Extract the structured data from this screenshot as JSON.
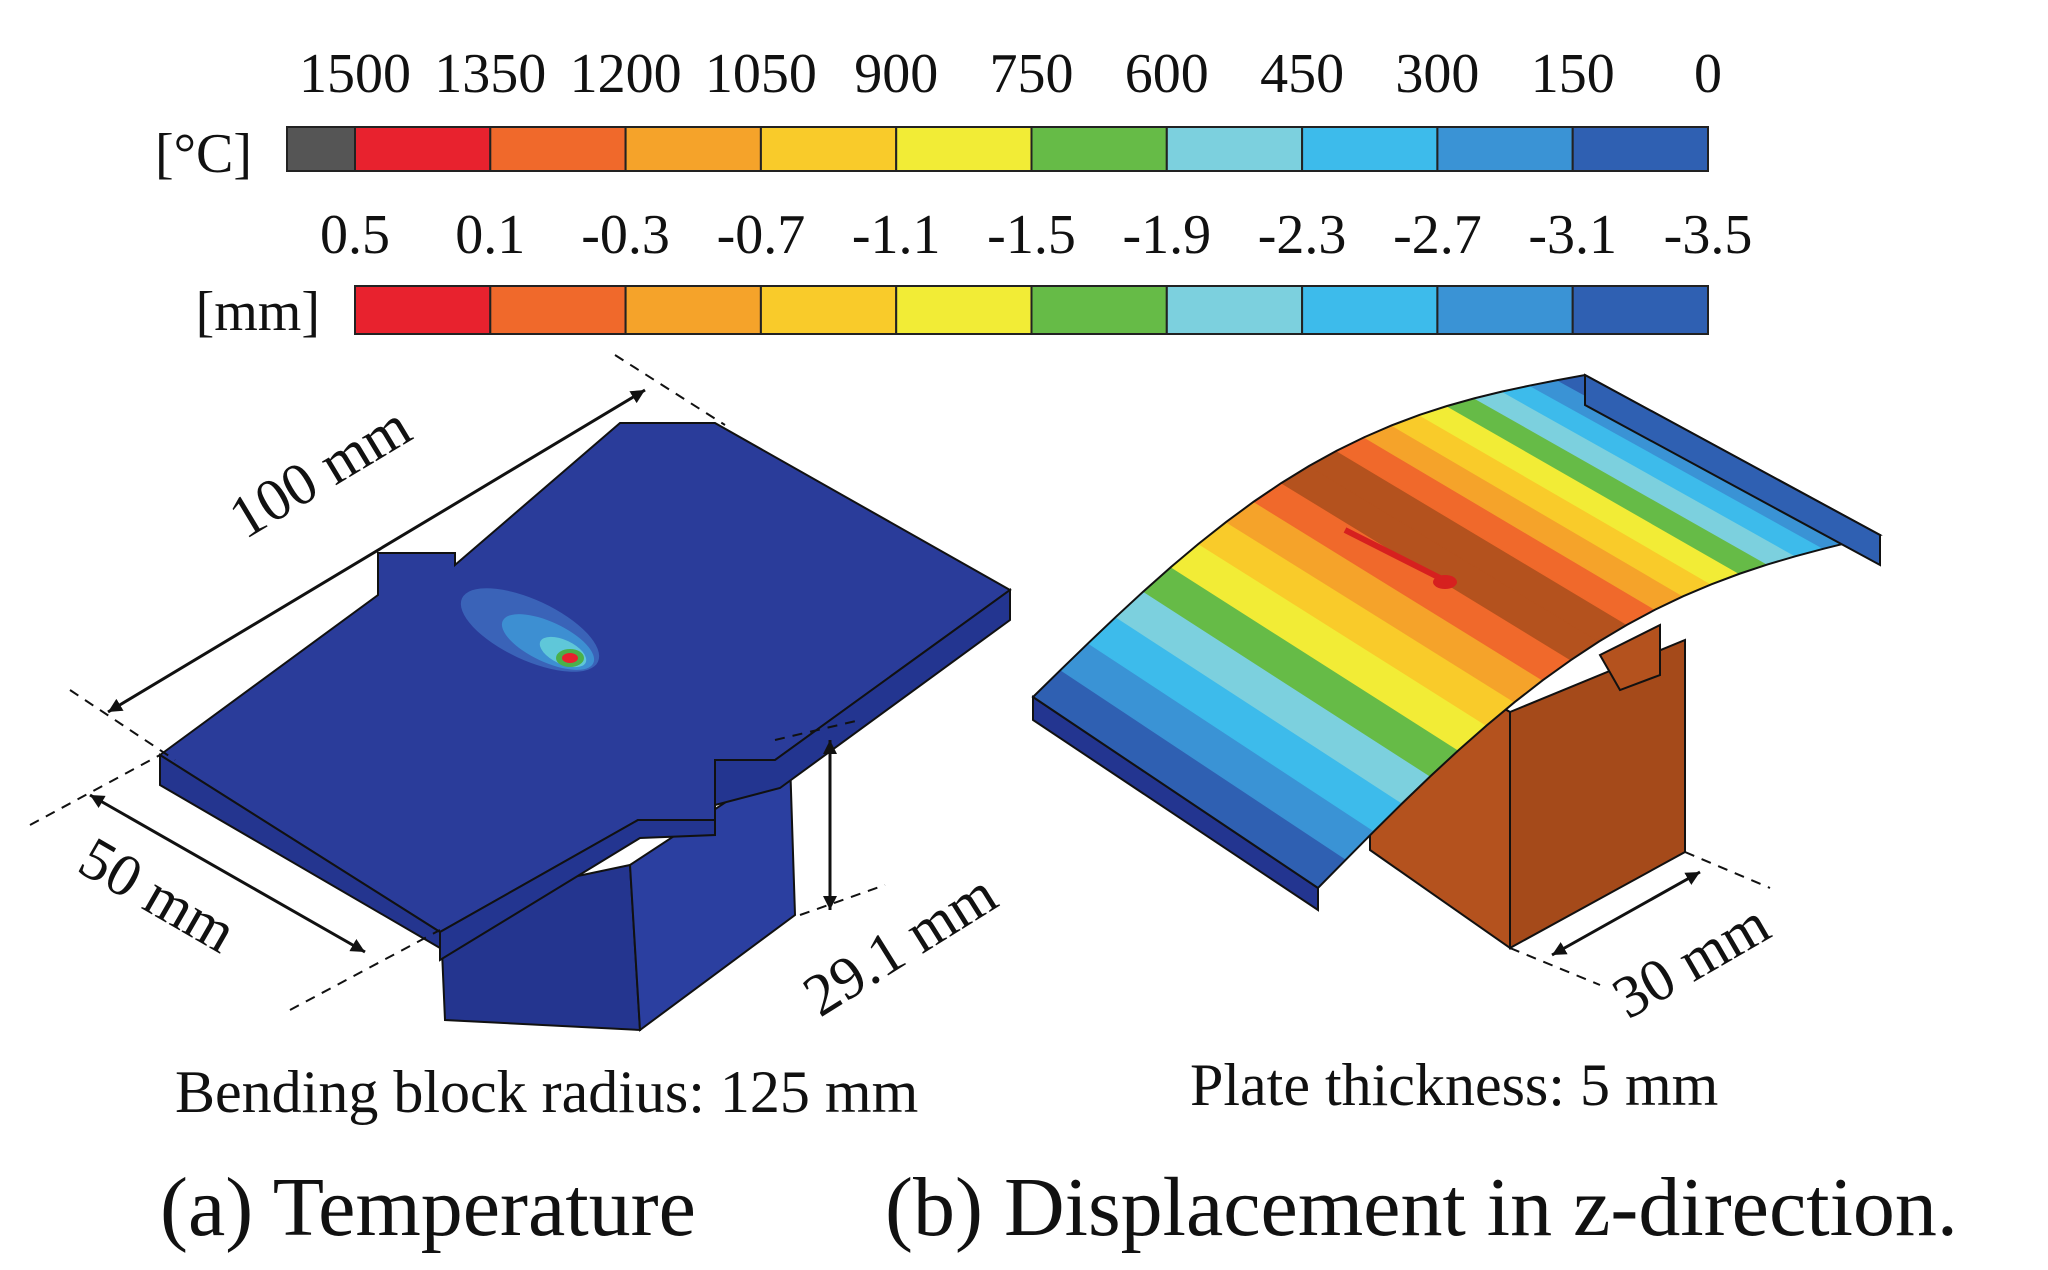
{
  "colorbars": {
    "temperature": {
      "unit": "[°C]",
      "ticks": [
        "1500",
        "1350",
        "1200",
        "1050",
        "900",
        "750",
        "600",
        "450",
        "300",
        "150",
        "0"
      ],
      "overflow_color": "#555555",
      "colors": [
        "#e8222e",
        "#f0692b",
        "#f5a32a",
        "#f9cb2a",
        "#f2ec36",
        "#66bb47",
        "#7cd0de",
        "#3dbbeb",
        "#3a93d5",
        "#2f60b2"
      ]
    },
    "displacement": {
      "unit": "[mm]",
      "ticks": [
        "0.5",
        "0.1",
        "-0.3",
        "-0.7",
        "-1.1",
        "-1.5",
        "-1.9",
        "-2.3",
        "-2.7",
        "-3.1",
        "-3.5"
      ],
      "colors": [
        "#e8222e",
        "#f0692b",
        "#f5a32a",
        "#f9cb2a",
        "#f2ec36",
        "#66bb47",
        "#7cd0de",
        "#3dbbeb",
        "#3a93d5",
        "#2f60b2"
      ]
    }
  },
  "panel_a": {
    "dim_length": "100 mm",
    "dim_width": "50 mm",
    "dim_height": "29.1 mm",
    "note": "Bending block radius: 125 mm",
    "caption": "(a) Temperature",
    "plate_color": "#2a3c9a"
  },
  "panel_b": {
    "dim_block": "30 mm",
    "note": "Plate thickness: 5 mm",
    "caption": "(b) Displacement in z-direction.",
    "block_color": "#b4521e"
  }
}
